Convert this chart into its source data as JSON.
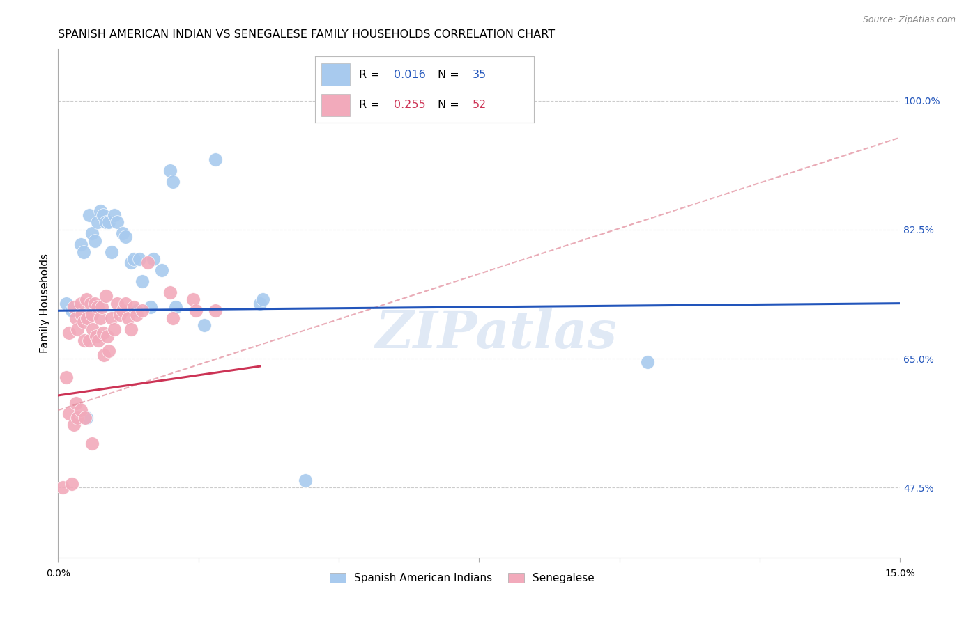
{
  "title": "SPANISH AMERICAN INDIAN VS SENEGALESE FAMILY HOUSEHOLDS CORRELATION CHART",
  "source": "Source: ZipAtlas.com",
  "ylabel": "Family Households",
  "ytick_vals": [
    47.5,
    65.0,
    82.5,
    100.0
  ],
  "xlim": [
    0.0,
    15.0
  ],
  "ylim": [
    38.0,
    107.0
  ],
  "legend1_R": "0.016",
  "legend1_N": "35",
  "legend2_R": "0.255",
  "legend2_N": "52",
  "legend_label1": "Spanish American Indians",
  "legend_label2": "Senegalese",
  "blue_color": "#A8CAEE",
  "pink_color": "#F2AABB",
  "blue_line_color": "#2255BB",
  "pink_line_color": "#CC3355",
  "pink_dash_color": "#E08898",
  "blue_scatter": [
    [
      0.15,
      72.5
    ],
    [
      0.25,
      71.5
    ],
    [
      0.4,
      80.5
    ],
    [
      0.45,
      79.5
    ],
    [
      0.55,
      84.5
    ],
    [
      0.6,
      82.0
    ],
    [
      0.65,
      81.0
    ],
    [
      0.7,
      83.5
    ],
    [
      0.75,
      85.0
    ],
    [
      0.8,
      84.5
    ],
    [
      0.85,
      83.5
    ],
    [
      0.9,
      83.5
    ],
    [
      0.95,
      79.5
    ],
    [
      1.0,
      84.5
    ],
    [
      1.05,
      83.5
    ],
    [
      1.15,
      82.0
    ],
    [
      1.2,
      81.5
    ],
    [
      1.3,
      78.0
    ],
    [
      1.35,
      78.5
    ],
    [
      1.4,
      71.5
    ],
    [
      1.45,
      78.5
    ],
    [
      1.5,
      75.5
    ],
    [
      1.65,
      72.0
    ],
    [
      1.7,
      78.5
    ],
    [
      1.85,
      77.0
    ],
    [
      2.0,
      90.5
    ],
    [
      2.05,
      89.0
    ],
    [
      2.1,
      72.0
    ],
    [
      2.6,
      69.5
    ],
    [
      2.8,
      92.0
    ],
    [
      3.6,
      72.5
    ],
    [
      3.65,
      73.0
    ],
    [
      4.4,
      48.5
    ],
    [
      10.5,
      64.5
    ],
    [
      0.5,
      57.0
    ]
  ],
  "pink_scatter": [
    [
      0.15,
      62.5
    ],
    [
      0.2,
      68.5
    ],
    [
      0.28,
      72.0
    ],
    [
      0.32,
      70.5
    ],
    [
      0.35,
      69.0
    ],
    [
      0.4,
      72.5
    ],
    [
      0.42,
      71.0
    ],
    [
      0.45,
      70.0
    ],
    [
      0.47,
      67.5
    ],
    [
      0.5,
      73.0
    ],
    [
      0.52,
      70.5
    ],
    [
      0.55,
      67.5
    ],
    [
      0.58,
      72.5
    ],
    [
      0.6,
      71.0
    ],
    [
      0.62,
      69.0
    ],
    [
      0.65,
      72.5
    ],
    [
      0.68,
      68.0
    ],
    [
      0.7,
      72.0
    ],
    [
      0.72,
      67.5
    ],
    [
      0.75,
      70.5
    ],
    [
      0.78,
      72.0
    ],
    [
      0.8,
      68.5
    ],
    [
      0.82,
      65.5
    ],
    [
      0.85,
      73.5
    ],
    [
      0.88,
      68.0
    ],
    [
      0.9,
      66.0
    ],
    [
      0.95,
      70.5
    ],
    [
      1.0,
      69.0
    ],
    [
      1.05,
      72.5
    ],
    [
      1.1,
      71.0
    ],
    [
      1.15,
      71.5
    ],
    [
      1.2,
      72.5
    ],
    [
      1.25,
      70.5
    ],
    [
      1.3,
      69.0
    ],
    [
      1.35,
      72.0
    ],
    [
      1.4,
      71.0
    ],
    [
      1.5,
      71.5
    ],
    [
      1.6,
      78.0
    ],
    [
      2.0,
      74.0
    ],
    [
      2.05,
      70.5
    ],
    [
      2.4,
      73.0
    ],
    [
      2.45,
      71.5
    ],
    [
      2.8,
      71.5
    ],
    [
      0.08,
      47.5
    ],
    [
      0.25,
      48.0
    ],
    [
      0.2,
      57.5
    ],
    [
      0.28,
      56.0
    ],
    [
      0.32,
      59.0
    ],
    [
      0.35,
      57.0
    ],
    [
      0.4,
      58.0
    ],
    [
      0.48,
      57.0
    ],
    [
      0.6,
      53.5
    ]
  ],
  "watermark_text": "ZIPatlas",
  "background_color": "#FFFFFF",
  "grid_color": "#CCCCCC",
  "blue_line_y_at_0": 71.5,
  "blue_line_y_at_15": 72.5,
  "pink_solid_y_at_0": 60.0,
  "pink_solid_y_at_15": 76.5,
  "pink_dash_y_at_0": 58.0,
  "pink_dash_y_at_15": 95.0
}
